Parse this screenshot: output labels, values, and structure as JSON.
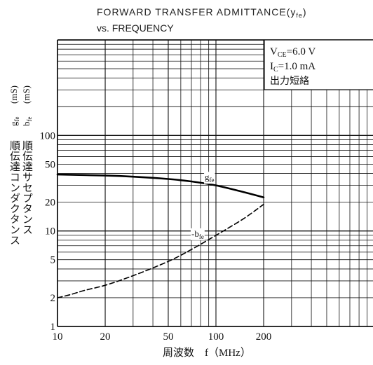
{
  "chart_data": {
    "type": "line",
    "title_line1": "FORWARD TRANSFER ADMITTANCE(y",
    "title_sub": "fe",
    "title_line1_end": ")",
    "title_line2": "vs. FREQUENCY",
    "xlabel": "周波数　f（MHz）",
    "ylabel_line1": "順伝達コンダクタンス",
    "ylabel_line2": "順伝達サセプタンス",
    "yunit_g": "g",
    "yunit_g_sub": "fe",
    "yunit_b": "b",
    "yunit_b_sub": "fe",
    "yunit_unit1": "(mS)",
    "yunit_unit2": "(mS)",
    "x_scale": "log",
    "y_scale": "log",
    "xlim": [
      10,
      300
    ],
    "ylim": [
      1,
      1000
    ],
    "x_ticks": [
      {
        "value": 10,
        "label": "10"
      },
      {
        "value": 20,
        "label": "20"
      },
      {
        "value": 50,
        "label": "50"
      },
      {
        "value": 100,
        "label": "100"
      },
      {
        "value": 200,
        "label": "200"
      }
    ],
    "y_ticks": [
      {
        "value": 1,
        "label": "1"
      },
      {
        "value": 2,
        "label": "2"
      },
      {
        "value": 5,
        "label": "5"
      },
      {
        "value": 10,
        "label": "10"
      },
      {
        "value": 20,
        "label": "20"
      },
      {
        "value": 50,
        "label": "50"
      },
      {
        "value": 100,
        "label": "100"
      }
    ],
    "grid": true,
    "conditions": {
      "line1_main": "V",
      "line1_sub": "CE",
      "line1_value": "=6.0 V",
      "line2_main": "I",
      "line2_sub": "C",
      "line2_value": "=1.0 mA",
      "line3": "出力短絡"
    },
    "series": [
      {
        "name": "g",
        "name_sub": "fe",
        "style": "solid",
        "label_at": {
          "x": 85,
          "y": 34
        },
        "x": [
          10,
          20,
          30,
          50,
          70,
          100,
          150,
          200
        ],
        "y": [
          39,
          38,
          37,
          35,
          33,
          30,
          25.5,
          22.5
        ]
      },
      {
        "name": "b",
        "name_sub": "fe",
        "name_prefix": "-",
        "style": "dashed",
        "label_at": {
          "x": 70,
          "y": 8.7
        },
        "x": [
          10,
          12,
          15,
          20,
          30,
          50,
          70,
          100,
          150,
          200
        ],
        "y": [
          2,
          2.15,
          2.4,
          2.7,
          3.4,
          4.8,
          6.4,
          9,
          13.5,
          19
        ]
      }
    ]
  }
}
